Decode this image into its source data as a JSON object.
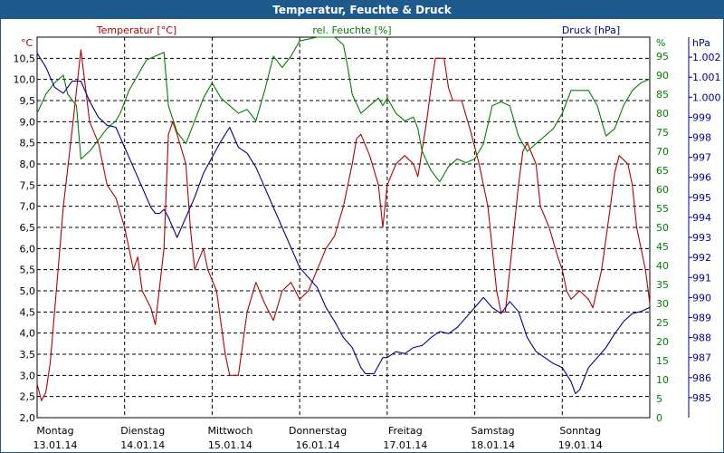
{
  "window": {
    "title": "Temperatur, Feuchte & Druck"
  },
  "colors": {
    "temperature": "#b00000",
    "humidity": "#008000",
    "pressure": "#00008b",
    "grid": "#000000",
    "titlebar": "#1f5a8c"
  },
  "chart_data": {
    "type": "line",
    "title": "Temperatur, Feuchte & Druck",
    "grid": true,
    "axes": {
      "left": {
        "label": "Temperatur [°C]",
        "unit": "°C",
        "range": [
          2.0,
          11.0
        ],
        "ticks": [
          "2,0",
          "2,5",
          "3,0",
          "3,5",
          "4,0",
          "4,5",
          "5,0",
          "5,5",
          "6,0",
          "6,5",
          "7,0",
          "7,5",
          "8,0",
          "8,5",
          "9,0",
          "9,5",
          "10,0",
          "10,5"
        ]
      },
      "right1": {
        "label": "rel. Feuchte [%]",
        "unit": "%",
        "range": [
          0,
          100
        ],
        "ticks": [
          "0",
          "5",
          "10",
          "15",
          "20",
          "25",
          "30",
          "35",
          "40",
          "45",
          "50",
          "55",
          "60",
          "65",
          "70",
          "75",
          "80",
          "85",
          "90",
          "95"
        ]
      },
      "right2": {
        "label": "Druck [hPa]",
        "unit": "hPa",
        "range": [
          984,
          1003
        ],
        "ticks": [
          "985",
          "986",
          "987",
          "988",
          "989",
          "990",
          "991",
          "992",
          "993",
          "994",
          "995",
          "996",
          "997",
          "998",
          "999",
          "1.000",
          "1.001",
          "1.002"
        ]
      },
      "x": {
        "range": [
          0,
          7
        ],
        "day_labels": [
          "Montag",
          "Dienstag",
          "Mittwoch",
          "Donnerstag",
          "Freitag",
          "Samstag",
          "Sonntag"
        ],
        "date_labels": [
          "13.01.14",
          "14.01.14",
          "15.01.14",
          "16.01.14",
          "17.01.14",
          "18.01.14",
          "19.01.14"
        ]
      }
    },
    "series": [
      {
        "name": "Temperatur [°C]",
        "axis": "left",
        "points": [
          [
            0,
            2.8
          ],
          [
            0.05,
            2.4
          ],
          [
            0.1,
            2.6
          ],
          [
            0.15,
            3.3
          ],
          [
            0.2,
            4.5
          ],
          [
            0.3,
            7.0
          ],
          [
            0.4,
            8.8
          ],
          [
            0.5,
            10.7
          ],
          [
            0.6,
            9.0
          ],
          [
            0.7,
            8.5
          ],
          [
            0.8,
            7.5
          ],
          [
            0.9,
            7.2
          ],
          [
            1.0,
            6.5
          ],
          [
            1.1,
            5.5
          ],
          [
            1.15,
            5.8
          ],
          [
            1.2,
            5.0
          ],
          [
            1.3,
            4.6
          ],
          [
            1.35,
            4.2
          ],
          [
            1.45,
            6.0
          ],
          [
            1.5,
            8.7
          ],
          [
            1.55,
            9.0
          ],
          [
            1.6,
            8.7
          ],
          [
            1.7,
            8.0
          ],
          [
            1.75,
            6.5
          ],
          [
            1.8,
            5.5
          ],
          [
            1.9,
            6.0
          ],
          [
            1.95,
            5.5
          ],
          [
            2.05,
            5.0
          ],
          [
            2.15,
            3.5
          ],
          [
            2.2,
            3.0
          ],
          [
            2.3,
            3.0
          ],
          [
            2.4,
            4.5
          ],
          [
            2.5,
            5.2
          ],
          [
            2.6,
            4.7
          ],
          [
            2.7,
            4.3
          ],
          [
            2.8,
            5.0
          ],
          [
            2.9,
            5.2
          ],
          [
            3.0,
            4.8
          ],
          [
            3.1,
            5.0
          ],
          [
            3.2,
            5.5
          ],
          [
            3.3,
            6.0
          ],
          [
            3.4,
            6.3
          ],
          [
            3.5,
            7.0
          ],
          [
            3.55,
            7.5
          ],
          [
            3.6,
            8.0
          ],
          [
            3.65,
            8.6
          ],
          [
            3.7,
            8.7
          ],
          [
            3.8,
            8.2
          ],
          [
            3.9,
            7.5
          ],
          [
            3.95,
            6.5
          ],
          [
            4.0,
            7.5
          ],
          [
            4.1,
            8.0
          ],
          [
            4.2,
            8.2
          ],
          [
            4.3,
            8.0
          ],
          [
            4.35,
            7.7
          ],
          [
            4.45,
            9.0
          ],
          [
            4.5,
            9.8
          ],
          [
            4.55,
            10.5
          ],
          [
            4.65,
            10.5
          ],
          [
            4.7,
            9.8
          ],
          [
            4.75,
            9.5
          ],
          [
            4.85,
            9.5
          ],
          [
            4.95,
            8.8
          ],
          [
            5.05,
            8.0
          ],
          [
            5.15,
            7.0
          ],
          [
            5.2,
            6.0
          ],
          [
            5.25,
            5.0
          ],
          [
            5.3,
            4.5
          ],
          [
            5.35,
            4.5
          ],
          [
            5.4,
            5.5
          ],
          [
            5.5,
            7.5
          ],
          [
            5.55,
            8.3
          ],
          [
            5.6,
            8.5
          ],
          [
            5.7,
            8.0
          ],
          [
            5.75,
            7.0
          ],
          [
            5.85,
            6.5
          ],
          [
            5.95,
            5.8
          ],
          [
            6.0,
            5.5
          ],
          [
            6.05,
            5.0
          ],
          [
            6.1,
            4.8
          ],
          [
            6.2,
            5.0
          ],
          [
            6.3,
            4.8
          ],
          [
            6.35,
            4.6
          ],
          [
            6.45,
            5.5
          ],
          [
            6.55,
            7.0
          ],
          [
            6.6,
            7.8
          ],
          [
            6.65,
            8.2
          ],
          [
            6.75,
            8.0
          ],
          [
            6.8,
            7.5
          ],
          [
            6.85,
            6.5
          ],
          [
            6.95,
            5.5
          ],
          [
            7.0,
            4.7
          ]
        ]
      },
      {
        "name": "rel. Feuchte [%]",
        "axis": "right1",
        "points": [
          [
            0,
            80
          ],
          [
            0.1,
            85
          ],
          [
            0.2,
            88
          ],
          [
            0.3,
            90
          ],
          [
            0.35,
            85
          ],
          [
            0.45,
            82
          ],
          [
            0.5,
            68
          ],
          [
            0.6,
            70
          ],
          [
            0.7,
            73
          ],
          [
            0.8,
            76
          ],
          [
            0.9,
            78
          ],
          [
            0.95,
            80
          ],
          [
            1.05,
            86
          ],
          [
            1.15,
            90
          ],
          [
            1.25,
            94
          ],
          [
            1.35,
            95
          ],
          [
            1.45,
            96
          ],
          [
            1.5,
            82
          ],
          [
            1.6,
            75
          ],
          [
            1.7,
            72
          ],
          [
            1.8,
            78
          ],
          [
            1.9,
            84
          ],
          [
            2.0,
            88
          ],
          [
            2.1,
            84
          ],
          [
            2.2,
            82
          ],
          [
            2.3,
            80
          ],
          [
            2.4,
            81
          ],
          [
            2.5,
            78
          ],
          [
            2.6,
            86
          ],
          [
            2.7,
            95
          ],
          [
            2.8,
            92
          ],
          [
            2.9,
            95
          ],
          [
            3.0,
            99
          ],
          [
            3.2,
            100
          ],
          [
            3.4,
            100
          ],
          [
            3.5,
            98
          ],
          [
            3.55,
            92
          ],
          [
            3.6,
            85
          ],
          [
            3.7,
            80
          ],
          [
            3.8,
            82
          ],
          [
            3.9,
            84
          ],
          [
            3.95,
            82
          ],
          [
            4.0,
            84
          ],
          [
            4.1,
            80
          ],
          [
            4.2,
            78
          ],
          [
            4.3,
            79
          ],
          [
            4.35,
            76
          ],
          [
            4.4,
            70
          ],
          [
            4.5,
            65
          ],
          [
            4.6,
            62
          ],
          [
            4.7,
            66
          ],
          [
            4.8,
            68
          ],
          [
            4.9,
            67
          ],
          [
            5.0,
            68
          ],
          [
            5.1,
            72
          ],
          [
            5.2,
            82
          ],
          [
            5.3,
            83
          ],
          [
            5.4,
            82
          ],
          [
            5.5,
            74
          ],
          [
            5.6,
            70
          ],
          [
            5.7,
            72
          ],
          [
            5.8,
            74
          ],
          [
            5.9,
            76
          ],
          [
            6.0,
            80
          ],
          [
            6.1,
            86
          ],
          [
            6.2,
            86
          ],
          [
            6.3,
            86
          ],
          [
            6.4,
            82
          ],
          [
            6.5,
            74
          ],
          [
            6.6,
            76
          ],
          [
            6.7,
            82
          ],
          [
            6.8,
            86
          ],
          [
            6.9,
            88
          ],
          [
            7.0,
            89
          ]
        ]
      },
      {
        "name": "Druck [hPa]",
        "axis": "right2",
        "points": [
          [
            0,
            1002.2
          ],
          [
            0.1,
            1001.5
          ],
          [
            0.2,
            1000.5
          ],
          [
            0.3,
            1000.2
          ],
          [
            0.4,
            1000.8
          ],
          [
            0.5,
            1000.8
          ],
          [
            0.6,
            999.8
          ],
          [
            0.7,
            999.0
          ],
          [
            0.8,
            998.6
          ],
          [
            0.9,
            998.5
          ],
          [
            1.0,
            997.5
          ],
          [
            1.1,
            996.5
          ],
          [
            1.2,
            995.5
          ],
          [
            1.3,
            994.5
          ],
          [
            1.35,
            994.2
          ],
          [
            1.4,
            994.2
          ],
          [
            1.45,
            994.4
          ],
          [
            1.5,
            994.0
          ],
          [
            1.55,
            993.5
          ],
          [
            1.6,
            993.0
          ],
          [
            1.7,
            994.0
          ],
          [
            1.8,
            995.0
          ],
          [
            1.9,
            996.2
          ],
          [
            2.0,
            997.0
          ],
          [
            2.1,
            997.8
          ],
          [
            2.2,
            998.5
          ],
          [
            2.3,
            997.5
          ],
          [
            2.4,
            997.2
          ],
          [
            2.5,
            996.5
          ],
          [
            2.6,
            995.5
          ],
          [
            2.7,
            994.5
          ],
          [
            2.8,
            993.5
          ],
          [
            2.9,
            992.5
          ],
          [
            3.0,
            991.5
          ],
          [
            3.1,
            991.0
          ],
          [
            3.2,
            990.5
          ],
          [
            3.3,
            989.5
          ],
          [
            3.4,
            988.8
          ],
          [
            3.5,
            988.0
          ],
          [
            3.6,
            987.5
          ],
          [
            3.7,
            986.5
          ],
          [
            3.75,
            986.2
          ],
          [
            3.85,
            986.2
          ],
          [
            3.95,
            987.0
          ],
          [
            4.0,
            987.0
          ],
          [
            4.1,
            987.3
          ],
          [
            4.2,
            987.2
          ],
          [
            4.3,
            987.5
          ],
          [
            4.4,
            987.6
          ],
          [
            4.5,
            988.0
          ],
          [
            4.6,
            988.3
          ],
          [
            4.7,
            988.2
          ],
          [
            4.8,
            988.5
          ],
          [
            4.9,
            989.0
          ],
          [
            5.0,
            989.5
          ],
          [
            5.1,
            990.0
          ],
          [
            5.2,
            989.5
          ],
          [
            5.3,
            989.2
          ],
          [
            5.4,
            989.8
          ],
          [
            5.5,
            989.3
          ],
          [
            5.6,
            988.0
          ],
          [
            5.7,
            987.3
          ],
          [
            5.8,
            987.0
          ],
          [
            5.9,
            986.7
          ],
          [
            6.0,
            986.5
          ],
          [
            6.1,
            985.8
          ],
          [
            6.15,
            985.2
          ],
          [
            6.2,
            985.4
          ],
          [
            6.3,
            986.5
          ],
          [
            6.4,
            987.0
          ],
          [
            6.5,
            987.5
          ],
          [
            6.6,
            988.2
          ],
          [
            6.7,
            988.8
          ],
          [
            6.8,
            989.2
          ],
          [
            6.9,
            989.3
          ],
          [
            7.0,
            989.5
          ]
        ]
      }
    ]
  }
}
